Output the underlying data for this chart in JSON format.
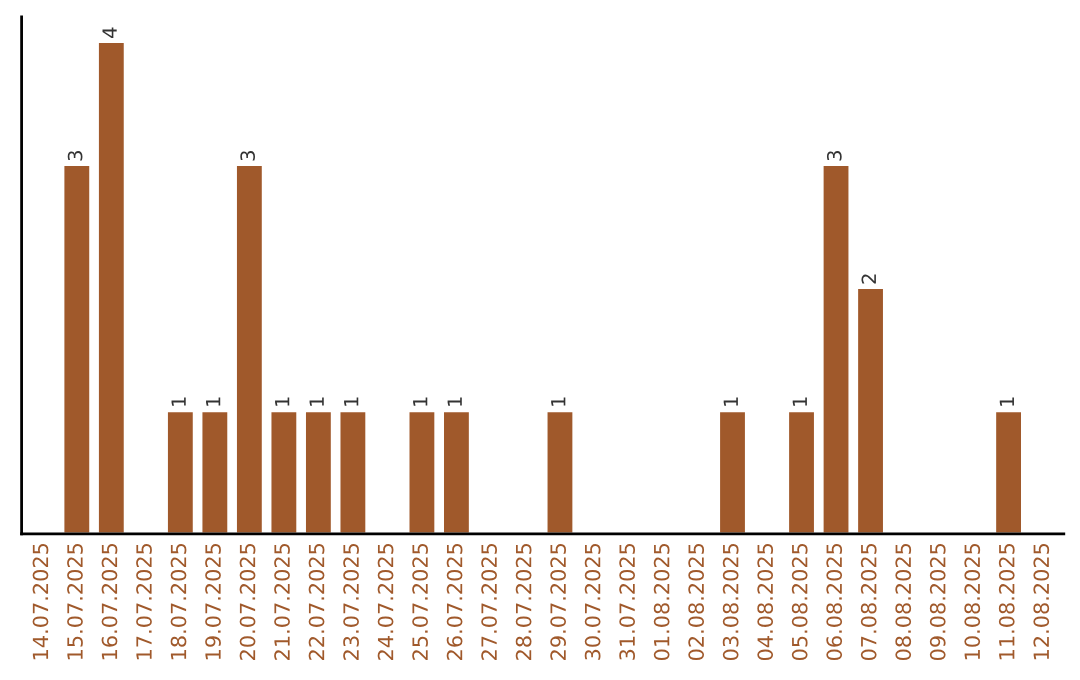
{
  "chart_data": {
    "type": "bar",
    "categories": [
      "14.07.2025",
      "15.07.2025",
      "16.07.2025",
      "17.07.2025",
      "18.07.2025",
      "19.07.2025",
      "20.07.2025",
      "21.07.2025",
      "22.07.2025",
      "23.07.2025",
      "24.07.2025",
      "25.07.2025",
      "26.07.2025",
      "27.07.2025",
      "28.07.2025",
      "29.07.2025",
      "30.07.2025",
      "31.07.2025",
      "01.08.2025",
      "02.08.2025",
      "03.08.2025",
      "04.08.2025",
      "05.08.2025",
      "06.08.2025",
      "07.08.2025",
      "08.08.2025",
      "09.08.2025",
      "10.08.2025",
      "11.08.2025",
      "12.08.2025"
    ],
    "values": [
      null,
      3,
      4,
      null,
      1,
      1,
      3,
      1,
      1,
      1,
      null,
      1,
      1,
      null,
      null,
      1,
      null,
      null,
      null,
      null,
      1,
      null,
      1,
      3,
      2,
      null,
      null,
      null,
      1,
      null
    ],
    "value_labels": [
      null,
      "3",
      "4",
      null,
      "1",
      "1",
      "3",
      "1",
      "1",
      "1",
      null,
      "1",
      "1",
      null,
      null,
      "1",
      null,
      null,
      null,
      null,
      "1",
      null,
      "1",
      "3",
      "2",
      null,
      null,
      null,
      "1",
      null
    ],
    "color": "#a0592b",
    "tick_labels": "x",
    "grid": false,
    "legend": false
  }
}
